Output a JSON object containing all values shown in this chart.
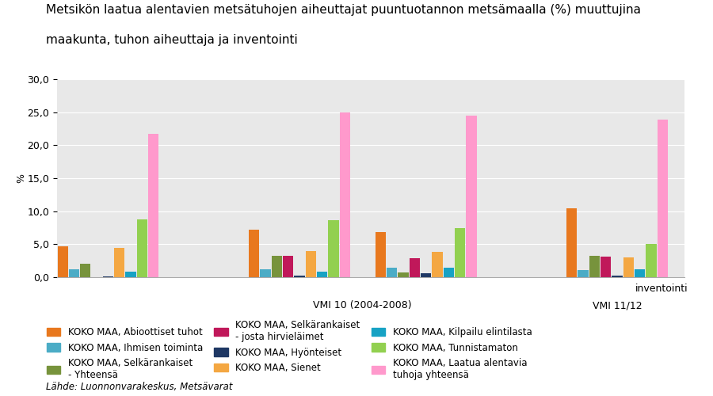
{
  "title_line1": "Metsikön laatua alentavien metsätuhojen aiheuttajat puuntuotannon metsämaalla (%) muuttujina",
  "title_line2": "maakunta, tuhon aiheuttaja ja inventointi",
  "xlabel": "inventointi",
  "ylabel": "%",
  "ylim": [
    0,
    30
  ],
  "yticks": [
    0.0,
    5.0,
    10.0,
    15.0,
    20.0,
    25.0,
    30.0
  ],
  "ytick_labels": [
    "0,0",
    "5,0",
    "10,0",
    "15,0",
    "20,0",
    "25,0",
    "30,0"
  ],
  "footer": "Lähde: Luonnonvarakeskus, Metsävarat",
  "group_labels": [
    "",
    "VMI 10 (2004-2008)",
    "",
    "VMI 11/12"
  ],
  "series": [
    {
      "name": "KOKO MAA, Abioottiset tuhot",
      "color": "#E8781E",
      "values": [
        4.7,
        7.2,
        6.8,
        10.4
      ]
    },
    {
      "name": "KOKO MAA, Ihmisen toiminta",
      "color": "#4BACC6",
      "values": [
        1.2,
        1.2,
        1.4,
        1.1
      ]
    },
    {
      "name": "KOKO MAA, Selkärankaiset\n- Yhteensä",
      "color": "#77933C",
      "values": [
        2.1,
        3.3,
        0.7,
        3.2
      ]
    },
    {
      "name": "KOKO MAA, Selkärankaiset\n- josta hirvieläimet",
      "color": "#C0185A",
      "values": [
        0.0,
        3.2,
        2.9,
        3.1
      ]
    },
    {
      "name": "KOKO MAA, Hyönteiset",
      "color": "#1F3864",
      "values": [
        0.1,
        0.3,
        0.6,
        0.2
      ]
    },
    {
      "name": "KOKO MAA, Sienet",
      "color": "#F4A742",
      "values": [
        4.5,
        4.0,
        3.8,
        3.0
      ]
    },
    {
      "name": "KOKO MAA, Kilpailu elintilasta",
      "color": "#17A2C4",
      "values": [
        0.8,
        0.8,
        1.4,
        1.2
      ]
    },
    {
      "name": "KOKO MAA, Tunnistamaton",
      "color": "#92D050",
      "values": [
        8.8,
        8.6,
        7.5,
        5.1
      ]
    },
    {
      "name": "KOKO MAA, Laatua alentavia\ntuhoja yhteensä",
      "color": "#FF99CC",
      "values": [
        21.7,
        25.0,
        24.5,
        23.9
      ]
    }
  ],
  "background_color": "#E8E8E8",
  "title_fontsize": 11,
  "axis_fontsize": 9,
  "legend_fontsize": 8.5
}
